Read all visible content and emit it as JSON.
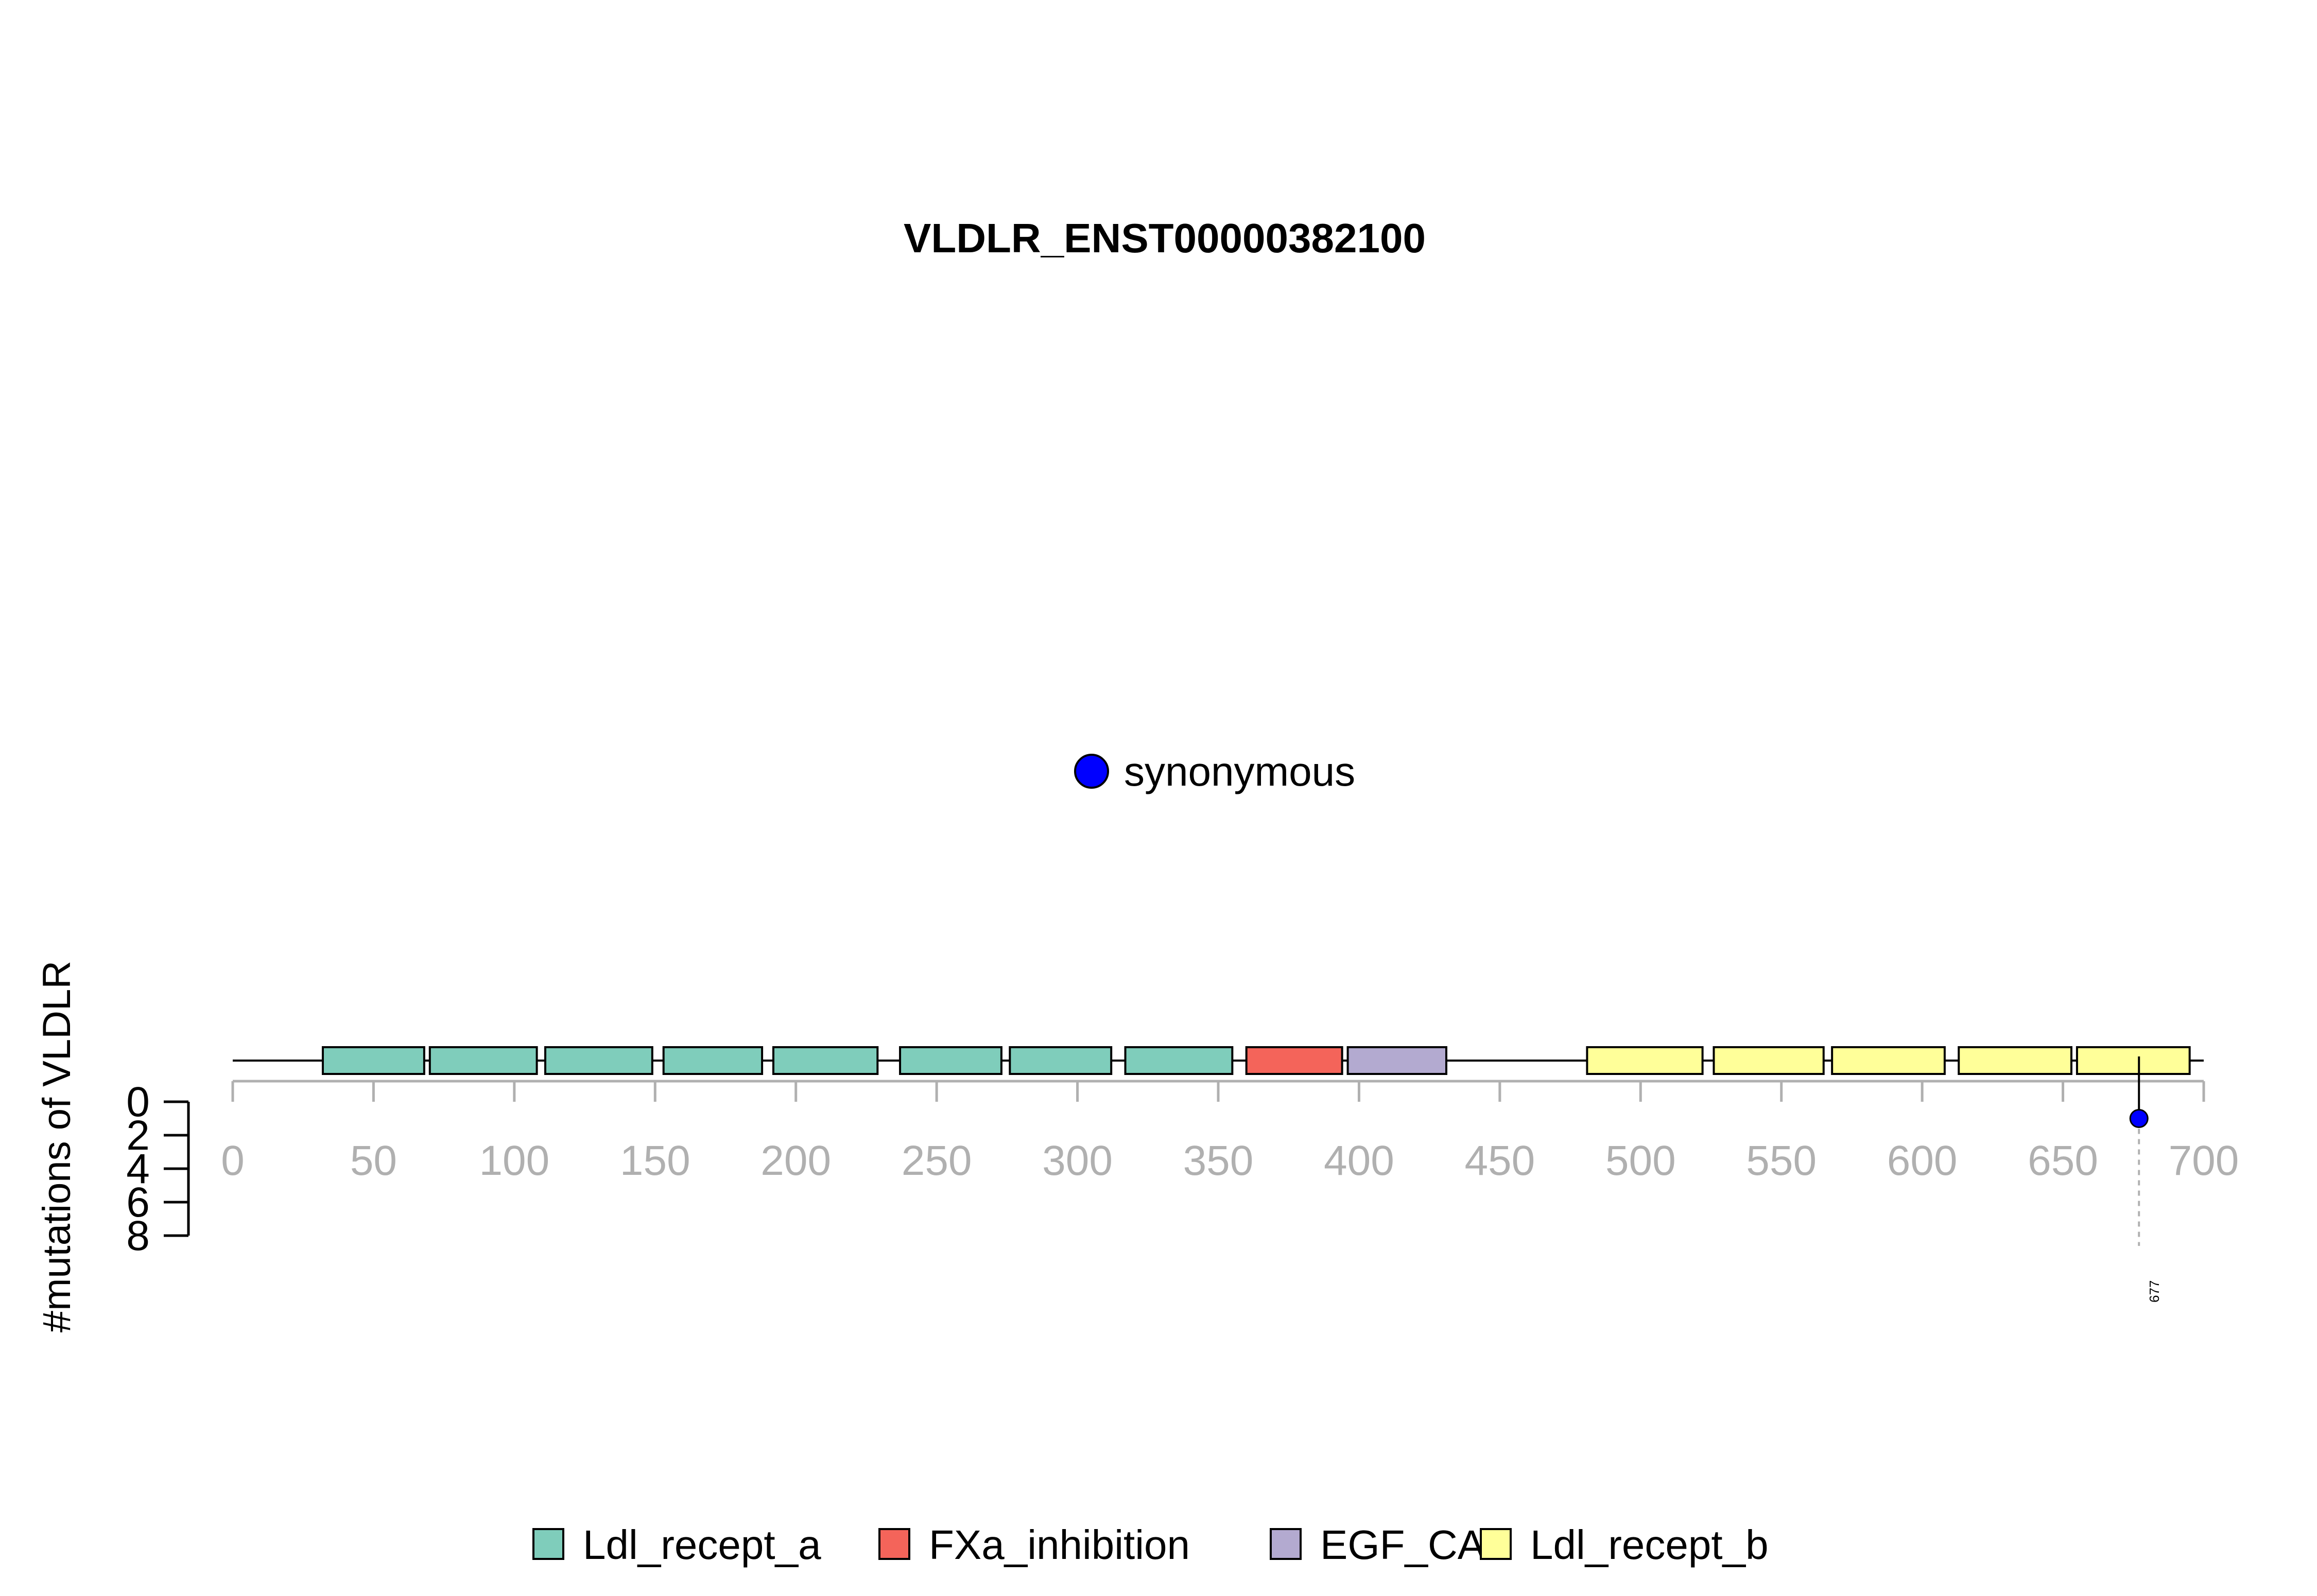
{
  "chart_data": {
    "type": "lollipop",
    "title": "VLDLR_ENST00000382100",
    "ylabel": "#mutations of VLDLR",
    "xlim": [
      0,
      700
    ],
    "x_ticks": [
      0,
      50,
      100,
      150,
      200,
      250,
      300,
      350,
      400,
      450,
      500,
      550,
      600,
      650,
      700
    ],
    "y_ticks": [
      0,
      2,
      4,
      6,
      8
    ],
    "y_axis_direction": "down",
    "domains": [
      {
        "name": "Ldl_recept_a",
        "start": 32,
        "end": 68
      },
      {
        "name": "Ldl_recept_a",
        "start": 70,
        "end": 108
      },
      {
        "name": "Ldl_recept_a",
        "start": 111,
        "end": 149
      },
      {
        "name": "Ldl_recept_a",
        "start": 153,
        "end": 188
      },
      {
        "name": "Ldl_recept_a",
        "start": 192,
        "end": 229
      },
      {
        "name": "Ldl_recept_a",
        "start": 237,
        "end": 273
      },
      {
        "name": "Ldl_recept_a",
        "start": 276,
        "end": 312
      },
      {
        "name": "Ldl_recept_a",
        "start": 317,
        "end": 355
      },
      {
        "name": "FXa_inhibition",
        "start": 360,
        "end": 394
      },
      {
        "name": "EGF_CA",
        "start": 396,
        "end": 431
      },
      {
        "name": "Ldl_recept_b",
        "start": 481,
        "end": 522
      },
      {
        "name": "Ldl_recept_b",
        "start": 526,
        "end": 565
      },
      {
        "name": "Ldl_recept_b",
        "start": 568,
        "end": 608
      },
      {
        "name": "Ldl_recept_b",
        "start": 613,
        "end": 653
      },
      {
        "name": "Ldl_recept_b",
        "start": 655,
        "end": 695
      }
    ],
    "mutations": [
      {
        "position": 677,
        "count": 1,
        "type": "synonymous",
        "label": "677"
      }
    ],
    "mutation_legend": [
      {
        "label": "synonymous",
        "color": "#0000ff"
      }
    ],
    "domain_legend": [
      {
        "label": "Ldl_recept_a",
        "color": "#7fcdbb"
      },
      {
        "label": "FXa_inhibition",
        "color": "#f4645a"
      },
      {
        "label": "EGF_CA",
        "color": "#b3aad0"
      },
      {
        "label": "Ldl_recept_b",
        "color": "#ffff99"
      }
    ],
    "domain_colors": {
      "Ldl_recept_a": "#7fcdbb",
      "FXa_inhibition": "#f4645a",
      "EGF_CA": "#b3aad0",
      "Ldl_recept_b": "#ffff99"
    }
  }
}
